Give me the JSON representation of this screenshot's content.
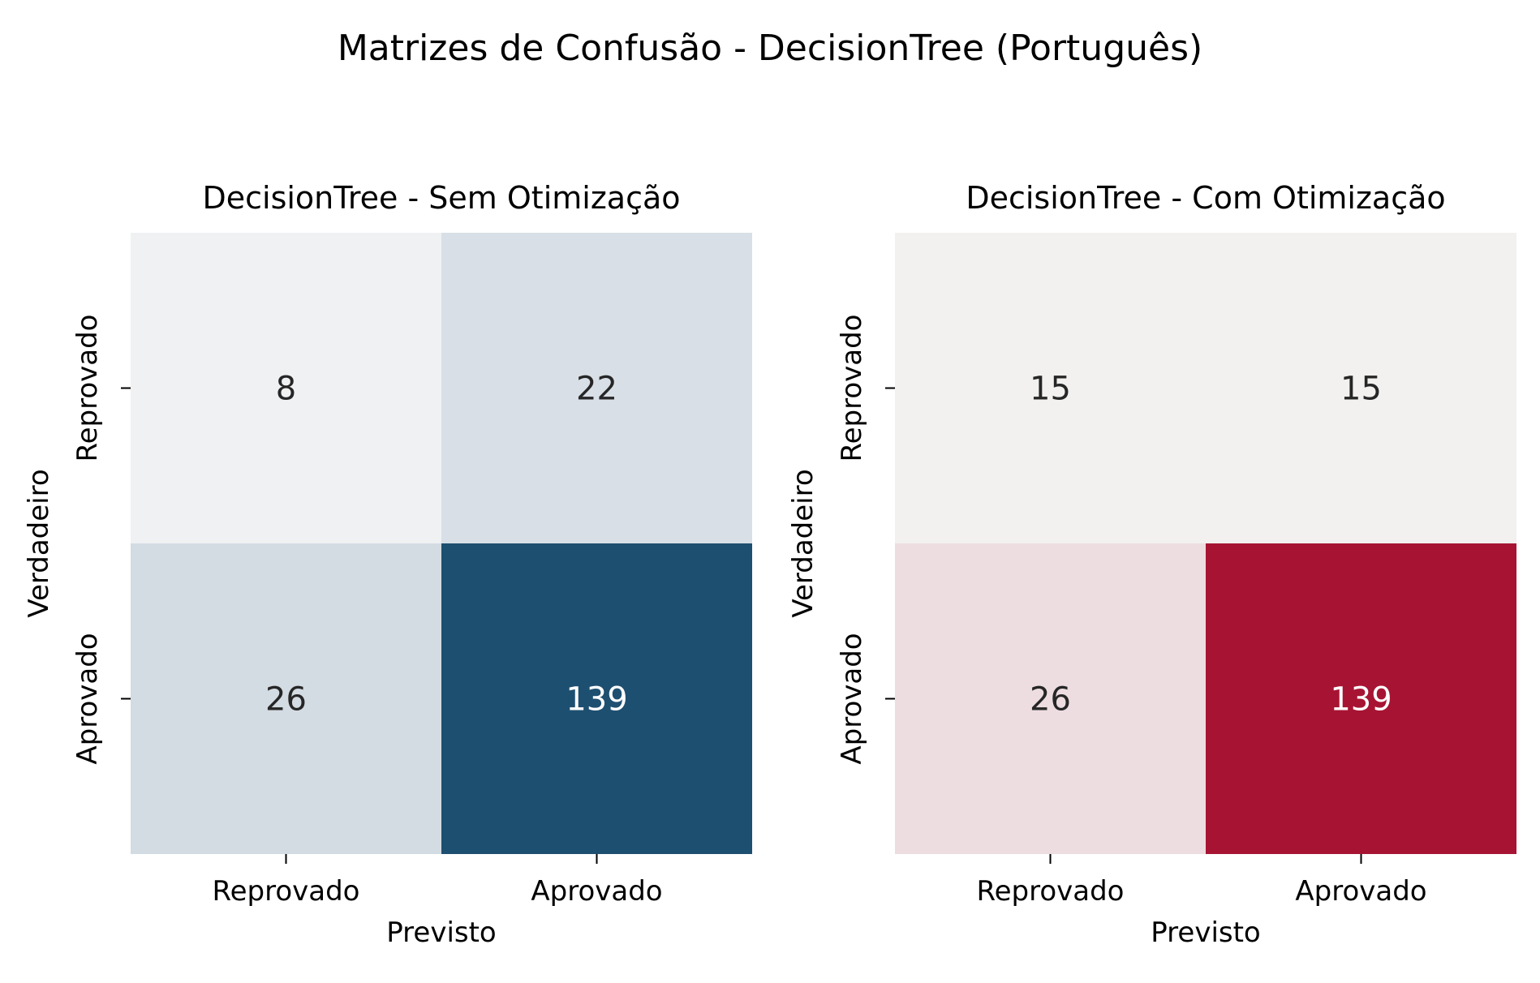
{
  "figure": {
    "title": "Matrizes de Confusão - DecisionTree (Português)"
  },
  "chart_data": [
    {
      "type": "heatmap",
      "title": "DecisionTree - Sem Otimização",
      "xlabel": "Previsto",
      "ylabel": "Verdadeiro",
      "x_categories": [
        "Reprovado",
        "Aprovado"
      ],
      "y_categories": [
        "Reprovado",
        "Aprovado"
      ],
      "values": [
        [
          8,
          22
        ],
        [
          26,
          139
        ]
      ],
      "colors": [
        [
          "#eff1f3",
          "#d8dfe6"
        ],
        [
          "#d3dbe3",
          "#1d4f71"
        ]
      ],
      "annotation_colors": [
        [
          "#262626",
          "#262626"
        ],
        [
          "#262626",
          "#ffffff"
        ]
      ],
      "colorbar": false,
      "grid": false
    },
    {
      "type": "heatmap",
      "title": "DecisionTree - Com Otimização",
      "xlabel": "Previsto",
      "ylabel": "Verdadeiro",
      "x_categories": [
        "Reprovado",
        "Aprovado"
      ],
      "y_categories": [
        "Reprovado",
        "Aprovado"
      ],
      "values": [
        [
          15,
          15
        ],
        [
          26,
          139
        ]
      ],
      "colors": [
        [
          "#f2f1f0",
          "#f2f1f0"
        ],
        [
          "#eddde1",
          "#a71433"
        ]
      ],
      "annotation_colors": [
        [
          "#262626",
          "#262626"
        ],
        [
          "#262626",
          "#ffffff"
        ]
      ],
      "colorbar": false,
      "grid": false
    }
  ]
}
